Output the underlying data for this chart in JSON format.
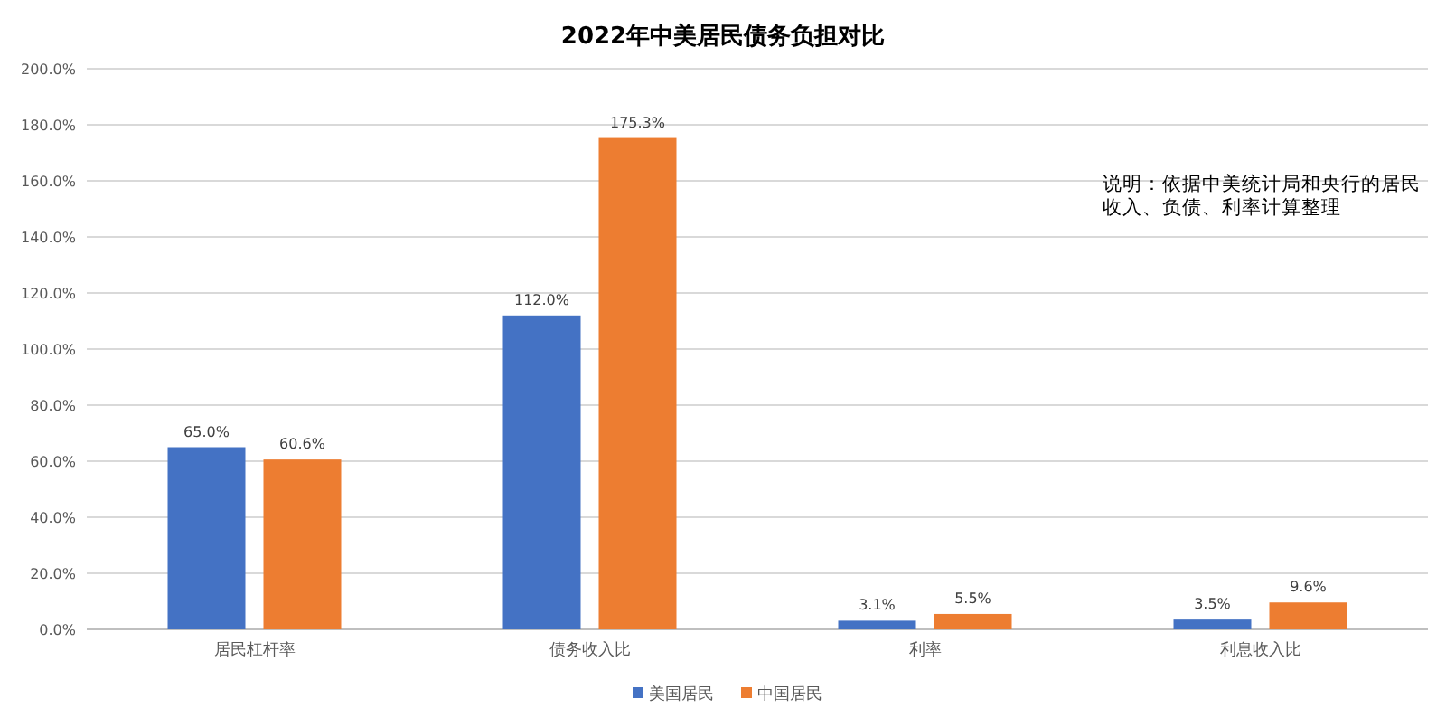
{
  "chart_data": {
    "type": "bar",
    "title": "2022年中美居民债务负担对比",
    "categories": [
      "居民杠杆率",
      "债务收入比",
      "利率",
      "利息收入比"
    ],
    "series": [
      {
        "name": "美国居民",
        "color": "#4472c4",
        "values": [
          65.0,
          112.0,
          3.1,
          3.5
        ],
        "value_labels": [
          "65.0%",
          "112.0%",
          "3.1%",
          "3.5%"
        ]
      },
      {
        "name": "中国居民",
        "color": "#ed7d31",
        "values": [
          60.6,
          175.3,
          5.5,
          9.6
        ],
        "value_labels": [
          "60.6%",
          "175.3%",
          "5.5%",
          "9.6%"
        ]
      }
    ],
    "ylim": [
      0,
      200
    ],
    "yticks": [
      {
        "value": 0,
        "label": "0.0%"
      },
      {
        "value": 20,
        "label": "20.0%"
      },
      {
        "value": 40,
        "label": "40.0%"
      },
      {
        "value": 60,
        "label": "60.0%"
      },
      {
        "value": 80,
        "label": "80.0%"
      },
      {
        "value": 100,
        "label": "100.0%"
      },
      {
        "value": 120,
        "label": "120.0%"
      },
      {
        "value": 140,
        "label": "140.0%"
      },
      {
        "value": 160,
        "label": "160.0%"
      },
      {
        "value": 180,
        "label": "180.0%"
      },
      {
        "value": 200,
        "label": "200.0%"
      }
    ],
    "grid": "y",
    "legend": "bottom",
    "annotations": [
      "说明：依据中美统计局和央行的居民收入、负债、利率计算整理"
    ]
  }
}
